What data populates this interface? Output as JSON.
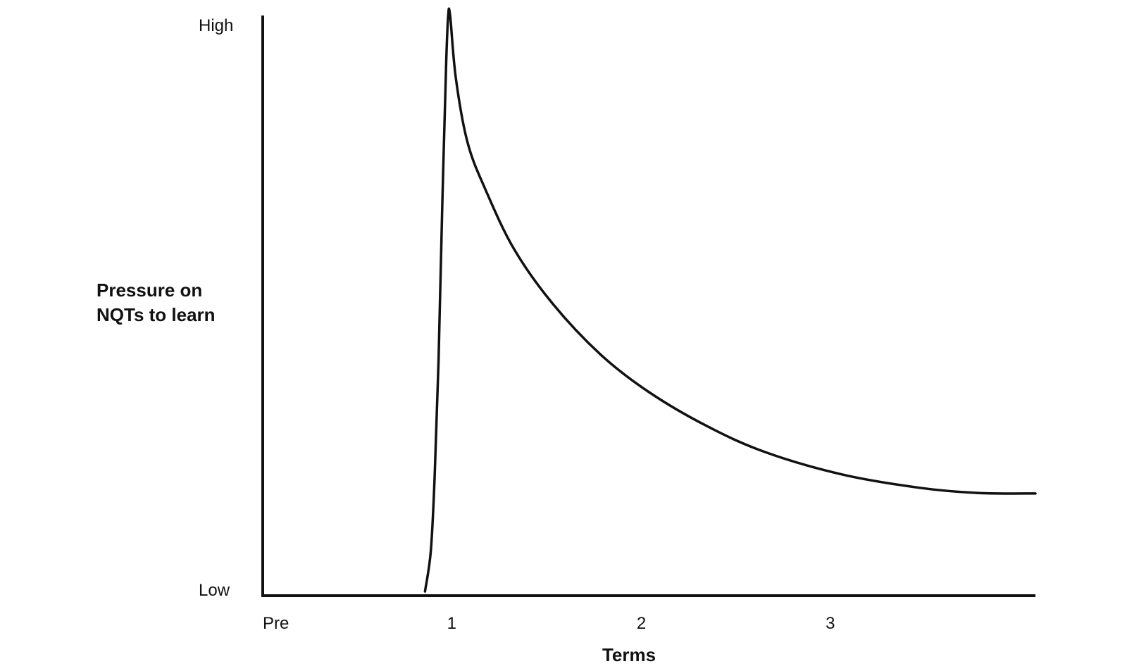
{
  "chart_data": {
    "type": "line",
    "title": "",
    "xlabel": "Terms",
    "ylabel_lines": [
      "Pressure on",
      "NQTs to learn"
    ],
    "x_tick_labels": [
      "Pre",
      "1",
      "2",
      "3"
    ],
    "x_tick_values": [
      0,
      1,
      2,
      3
    ],
    "xlim": [
      0,
      4
    ],
    "y_tick_labels": [
      "Low",
      "High"
    ],
    "ylim": [
      0,
      1
    ],
    "grid": false,
    "legend": "none",
    "colors": {
      "axis": "#111111",
      "line": "#111111",
      "background": "#ffffff"
    },
    "series": [
      {
        "points": [
          {
            "x": 0.84,
            "y": 0.0
          },
          {
            "x": 0.87,
            "y": 0.07
          },
          {
            "x": 0.89,
            "y": 0.2
          },
          {
            "x": 0.91,
            "y": 0.4
          },
          {
            "x": 0.93,
            "y": 0.68
          },
          {
            "x": 0.95,
            "y": 0.92
          },
          {
            "x": 0.96,
            "y": 1.0
          },
          {
            "x": 0.97,
            "y": 1.0
          },
          {
            "x": 1.0,
            "y": 0.89
          },
          {
            "x": 1.06,
            "y": 0.78
          },
          {
            "x": 1.15,
            "y": 0.7
          },
          {
            "x": 1.3,
            "y": 0.595
          },
          {
            "x": 1.5,
            "y": 0.5
          },
          {
            "x": 1.75,
            "y": 0.411
          },
          {
            "x": 2.0,
            "y": 0.346
          },
          {
            "x": 2.3,
            "y": 0.287
          },
          {
            "x": 2.6,
            "y": 0.242
          },
          {
            "x": 3.0,
            "y": 0.203
          },
          {
            "x": 3.4,
            "y": 0.18
          },
          {
            "x": 3.7,
            "y": 0.171
          },
          {
            "x": 4.0,
            "y": 0.17
          }
        ]
      }
    ]
  }
}
